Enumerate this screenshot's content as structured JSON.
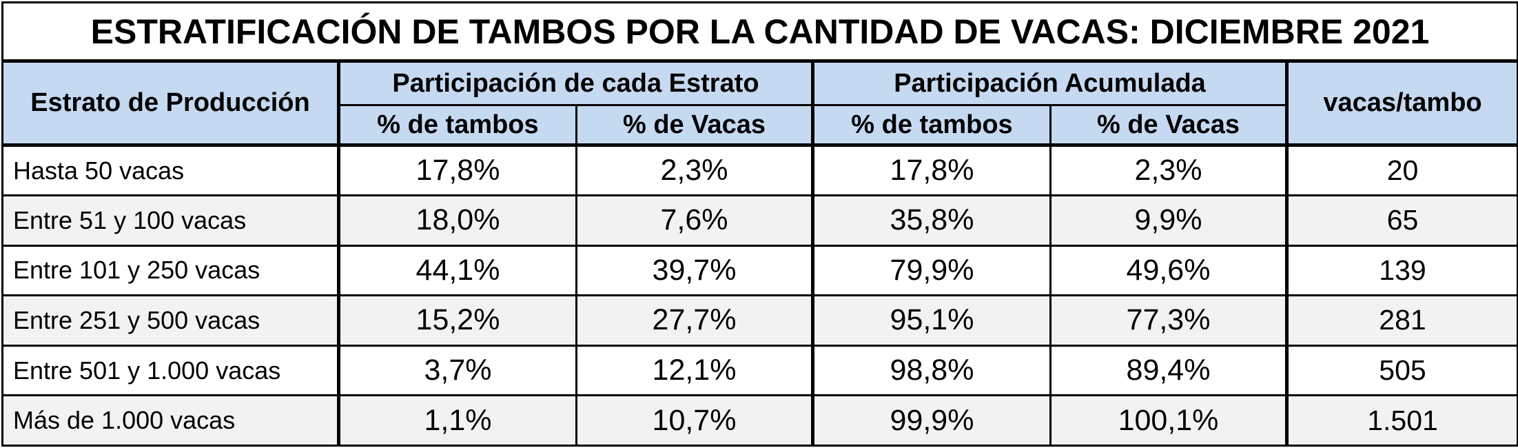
{
  "title": "ESTRATIFICACIÓN DE TAMBOS POR LA CANTIDAD DE VACAS: DICIEMBRE 2021",
  "headers": {
    "estrato": "Estrato de Producción",
    "group1": "Participación de cada Estrato",
    "group2": "Participación Acumulada",
    "vacas_tambo": "vacas/tambo",
    "sub": [
      "% de tambos",
      "% de Vacas",
      "% de tambos",
      "% de Vacas"
    ]
  },
  "rows": [
    {
      "label": "Hasta 50 vacas",
      "p_tambos": "17,8%",
      "p_vacas": "2,3%",
      "a_tambos": "17,8%",
      "a_vacas": "2,3%",
      "vt": "20"
    },
    {
      "label": "Entre 51 y 100 vacas",
      "p_tambos": "18,0%",
      "p_vacas": "7,6%",
      "a_tambos": "35,8%",
      "a_vacas": "9,9%",
      "vt": "65"
    },
    {
      "label": "Entre 101 y 250 vacas",
      "p_tambos": "44,1%",
      "p_vacas": "39,7%",
      "a_tambos": "79,9%",
      "a_vacas": "49,6%",
      "vt": "139"
    },
    {
      "label": "Entre 251 y 500 vacas",
      "p_tambos": "15,2%",
      "p_vacas": "27,7%",
      "a_tambos": "95,1%",
      "a_vacas": "77,3%",
      "vt": "281"
    },
    {
      "label": "Entre 501 y 1.000 vacas",
      "p_tambos": "3,7%",
      "p_vacas": "12,1%",
      "a_tambos": "98,8%",
      "a_vacas": "89,4%",
      "vt": "505"
    },
    {
      "label": "Más de 1.000 vacas",
      "p_tambos": "1,1%",
      "p_vacas": "10,7%",
      "a_tambos": "99,9%",
      "a_vacas": "100,1%",
      "vt": "1.501"
    }
  ],
  "colors": {
    "header_bg": "#c5d9f1",
    "alt_row_bg": "#f2f2f2",
    "border": "#000000"
  }
}
